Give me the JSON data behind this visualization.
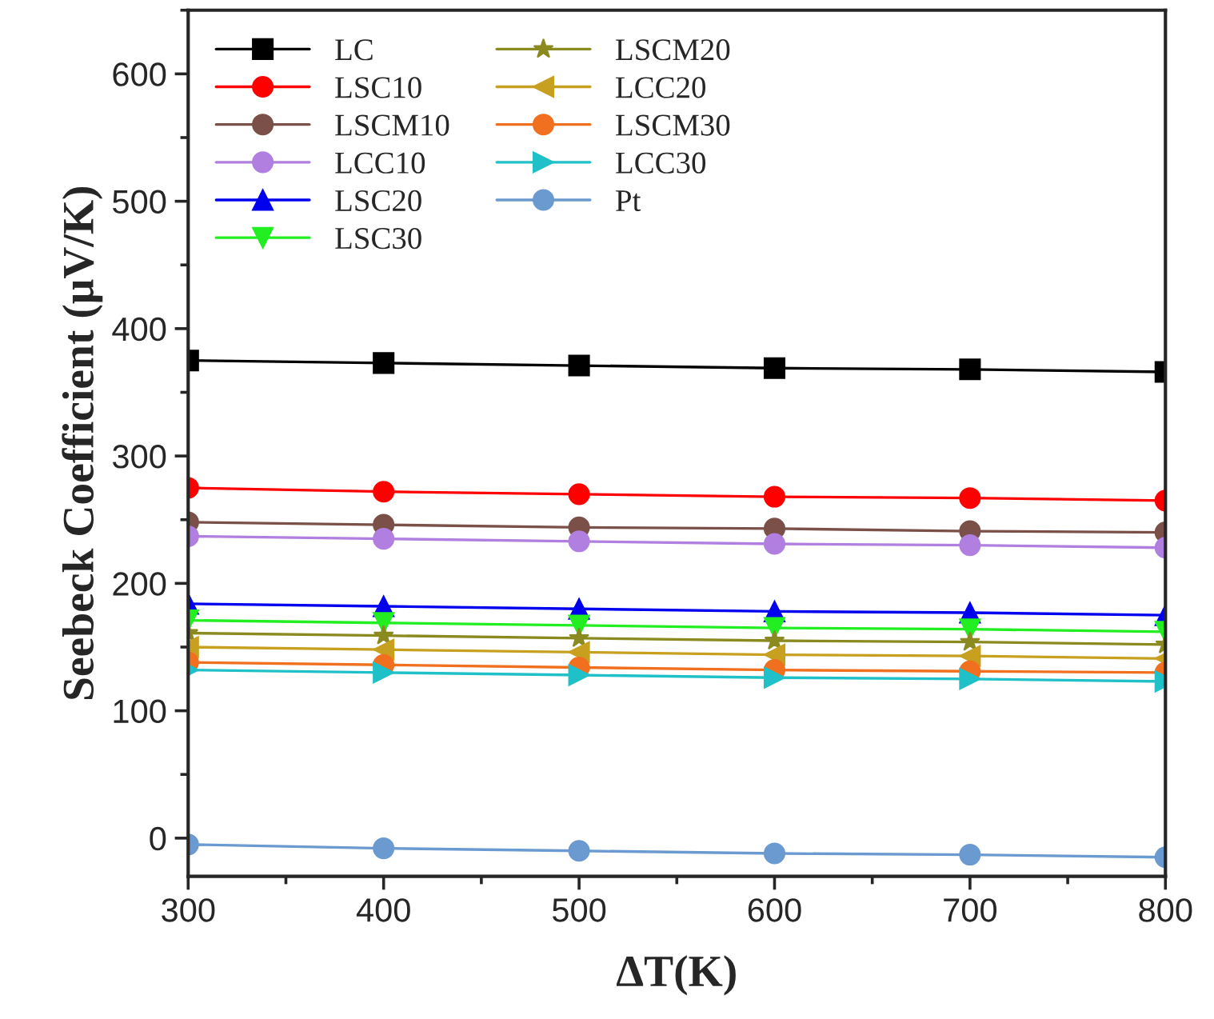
{
  "chart_data": {
    "type": "line",
    "xlabel": "ΔT(K)",
    "ylabel": "Seebeck Coefficient (μV/K)",
    "x": [
      300,
      400,
      500,
      600,
      700,
      800
    ],
    "xlim": [
      300,
      800
    ],
    "xticks": [
      300,
      400,
      500,
      600,
      700,
      800
    ],
    "ylim": [
      -30,
      650
    ],
    "yticks": [
      0,
      100,
      200,
      300,
      400,
      500,
      600
    ],
    "grid": false,
    "legend": "top left",
    "line_style": "solid",
    "series": [
      {
        "name": "LC",
        "color": "#000000",
        "marker": "square",
        "values": [
          375,
          373,
          371,
          369,
          368,
          366
        ]
      },
      {
        "name": "LSC10",
        "color": "#ff0000",
        "marker": "circle",
        "values": [
          275,
          272,
          270,
          268,
          267,
          265
        ]
      },
      {
        "name": "LSCM10",
        "color": "#7a5048",
        "marker": "circle",
        "values": [
          248,
          246,
          244,
          243,
          241,
          240
        ]
      },
      {
        "name": "LCC10",
        "color": "#b07fe0",
        "marker": "circle",
        "values": [
          237,
          235,
          233,
          231,
          230,
          228
        ]
      },
      {
        "name": "LSC20",
        "color": "#0000ee",
        "marker": "triangle",
        "values": [
          184,
          182,
          180,
          178,
          177,
          175
        ]
      },
      {
        "name": "LSC30",
        "color": "#22ee22",
        "marker": "triangle_down",
        "values": [
          171,
          169,
          167,
          165,
          164,
          162
        ]
      },
      {
        "name": "LSCM20",
        "color": "#8a8a20",
        "marker": "star",
        "values": [
          161,
          159,
          157,
          155,
          154,
          152
        ]
      },
      {
        "name": "LCC20",
        "color": "#c8a020",
        "marker": "triangle_left",
        "values": [
          150,
          148,
          146,
          144,
          143,
          141
        ]
      },
      {
        "name": "LSCM30",
        "color": "#f07020",
        "marker": "circle",
        "values": [
          138,
          136,
          134,
          132,
          131,
          130
        ]
      },
      {
        "name": "LCC30",
        "color": "#20c0c8",
        "marker": "triangle_right",
        "values": [
          132,
          130,
          128,
          126,
          125,
          123
        ]
      },
      {
        "name": "Pt",
        "color": "#6a9ad0",
        "marker": "circle",
        "values": [
          -5,
          -8,
          -10,
          -12,
          -13,
          -15
        ]
      }
    ]
  }
}
